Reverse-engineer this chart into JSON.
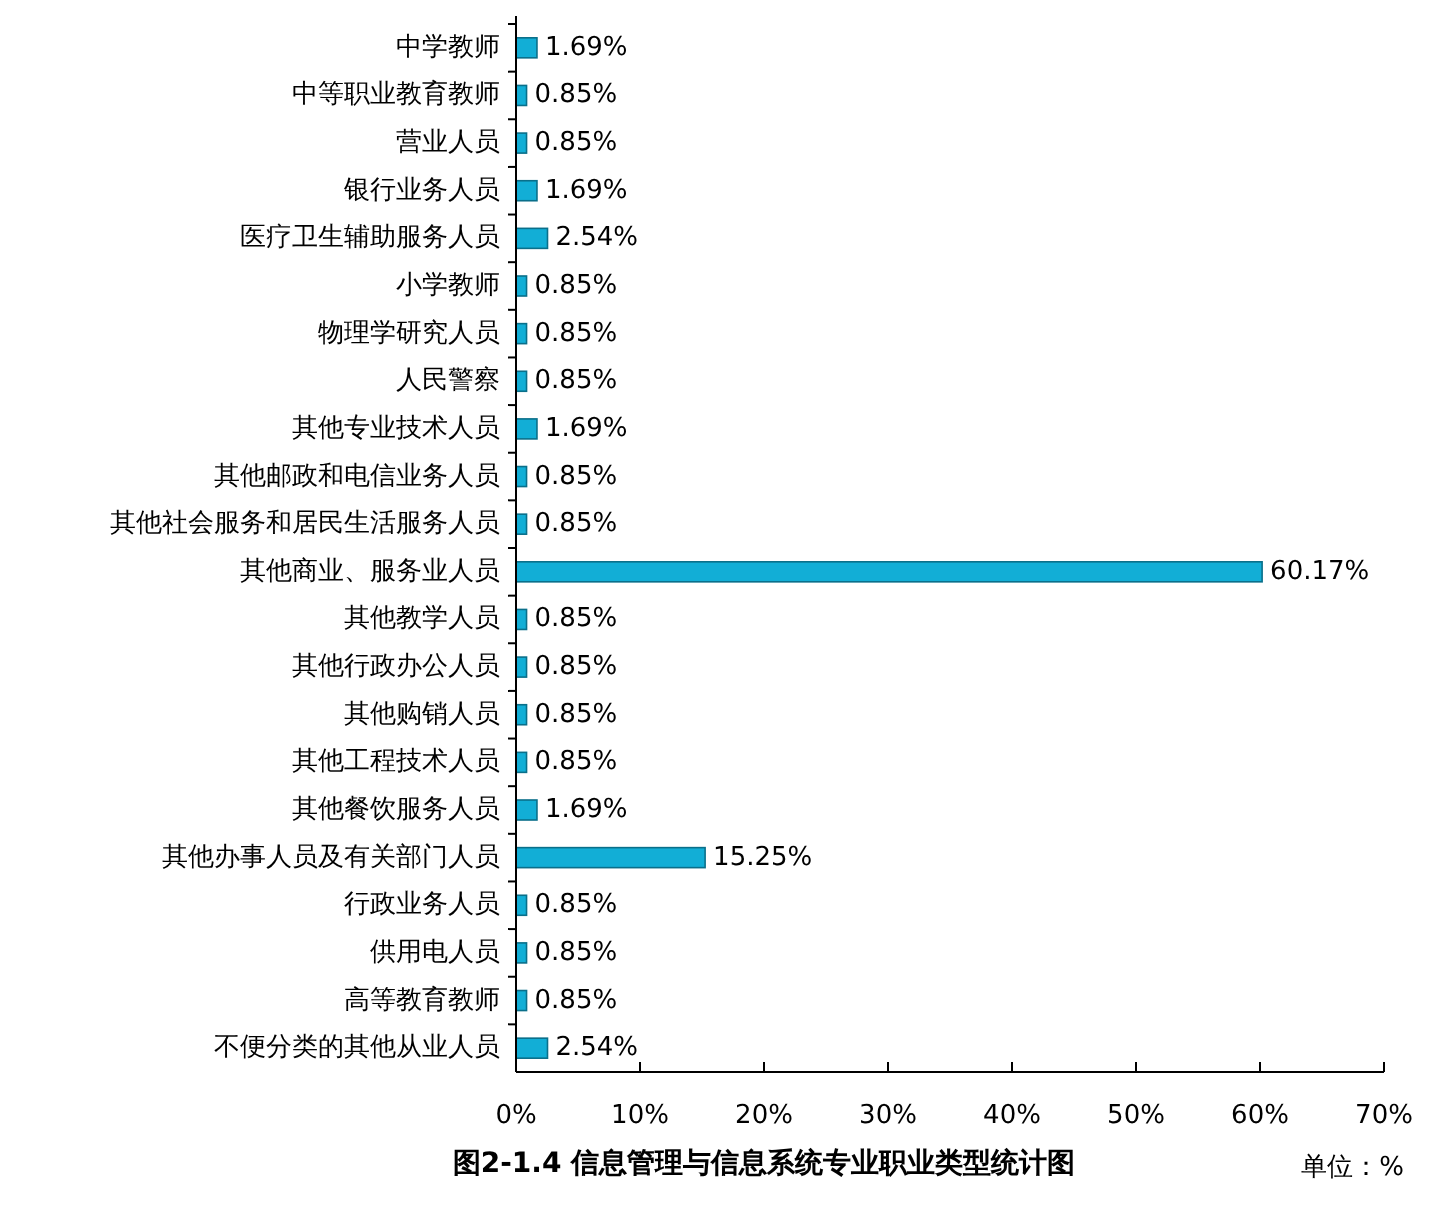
{
  "chart_data": {
    "type": "bar",
    "orientation": "horizontal",
    "title": "图2-1.4 信息管理与信息系统专业职业类型统计图",
    "annotations": [
      "单位：%"
    ],
    "categories": [
      "中学教师",
      "中等职业教育教师",
      "营业人员",
      "银行业务人员",
      "医疗卫生辅助服务人员",
      "小学教师",
      "物理学研究人员",
      "人民警察",
      "其他专业技术人员",
      "其他邮政和电信业务人员",
      "其他社会服务和居民生活服务人员",
      "其他商业、服务业人员",
      "其他教学人员",
      "其他行政办公人员",
      "其他购销人员",
      "其他工程技术人员",
      "其他餐饮服务人员",
      "其他办事人员及有关部门人员",
      "行政业务人员",
      "供用电人员",
      "高等教育教师",
      "不便分类的其他从业人员"
    ],
    "values": [
      1.69,
      0.85,
      0.85,
      1.69,
      2.54,
      0.85,
      0.85,
      0.85,
      1.69,
      0.85,
      0.85,
      60.17,
      0.85,
      0.85,
      0.85,
      0.85,
      1.69,
      15.25,
      0.85,
      0.85,
      0.85,
      2.54
    ],
    "value_labels": [
      "1.69%",
      "0.85%",
      "0.85%",
      "1.69%",
      "2.54%",
      "0.85%",
      "0.85%",
      "0.85%",
      "1.69%",
      "0.85%",
      "0.85%",
      "60.17%",
      "0.85%",
      "0.85%",
      "0.85%",
      "0.85%",
      "1.69%",
      "15.25%",
      "0.85%",
      "0.85%",
      "0.85%",
      "2.54%"
    ],
    "color": "#12aed6",
    "xlim": [
      0,
      70
    ],
    "xticks": [
      {
        "value": 0,
        "label": "0%"
      },
      {
        "value": 10,
        "label": "10%"
      },
      {
        "value": 20,
        "label": "20%"
      },
      {
        "value": 30,
        "label": "30%"
      },
      {
        "value": 40,
        "label": "40%"
      },
      {
        "value": 50,
        "label": "50%"
      },
      {
        "value": 60,
        "label": "60%"
      },
      {
        "value": 70,
        "label": "70%"
      }
    ],
    "grid": false
  }
}
